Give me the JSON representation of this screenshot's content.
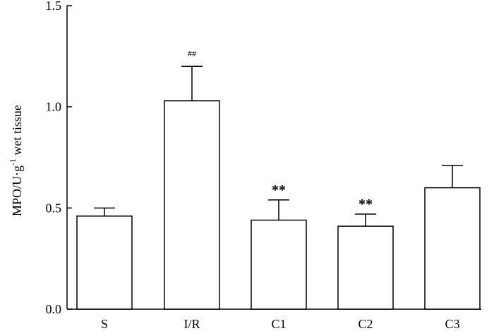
{
  "chart_data": {
    "type": "bar",
    "title": "",
    "xlabel": "",
    "ylabel": {
      "main": "MPO/U·g",
      "sup": "-1",
      "rest": " wet tissue"
    },
    "ylim": [
      0,
      1.5
    ],
    "yticks": [
      "0.0",
      "0.5",
      "1.0",
      "1.5"
    ],
    "categories": [
      "S",
      "I/R",
      "C1",
      "C2",
      "C3"
    ],
    "values": [
      0.46,
      1.03,
      0.44,
      0.41,
      0.6
    ],
    "error": [
      0.04,
      0.17,
      0.1,
      0.06,
      0.11
    ],
    "annotations": [
      "",
      "##",
      "**",
      "**",
      ""
    ],
    "grid": false,
    "bar_fill": "#ffffff",
    "bar_stroke": "#000000"
  }
}
